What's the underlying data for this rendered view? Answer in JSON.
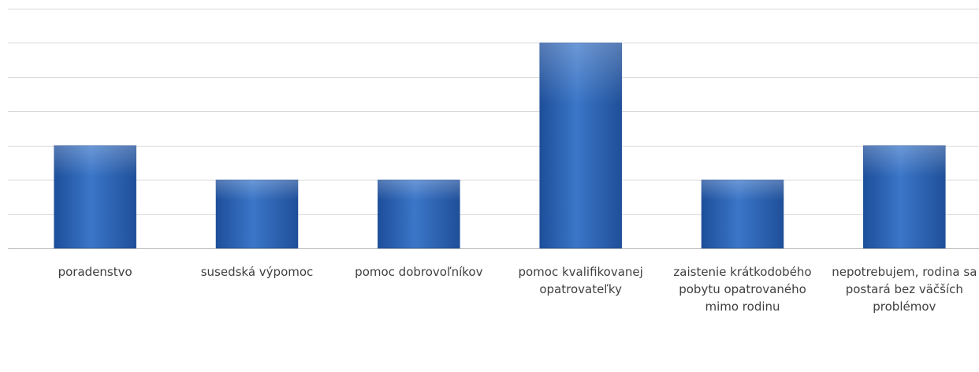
{
  "chart_data": {
    "type": "bar",
    "categories": [
      "poradenstvo",
      "susedská výpomoc",
      "pomoc dobrovoľníkov",
      "pomoc kvalifikovanej opatrovateľky",
      "zaistenie krátkodobého pobytu opatrovaného mimo rodinu",
      "nepotrebujem, rodina sa postará bez väčších problémov"
    ],
    "values": [
      3,
      2,
      2,
      6,
      2,
      3
    ],
    "ylim": [
      0,
      7
    ],
    "grid": true,
    "bar_color": "#2E64B4",
    "grid_color": "#D9D9D9",
    "axis_color": "#BFBFBF"
  }
}
